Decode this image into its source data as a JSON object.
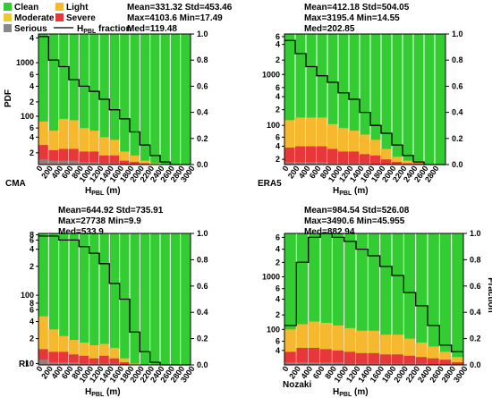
{
  "legend": {
    "items": [
      {
        "label": "Clean",
        "color": "#33cc33"
      },
      {
        "label": "Light",
        "color": "#f5b82e"
      },
      {
        "label": "Moderate",
        "color": "#f0c92c"
      },
      {
        "label": "Severe",
        "color": "#e8373a"
      },
      {
        "label": "Serious",
        "color": "#888888"
      }
    ],
    "line_label": "H",
    "line_sub": "PBL",
    "line_suffix": " fraction"
  },
  "chart_data": [
    {
      "type": "bar",
      "name": "CMA",
      "stats": [
        "Mean=331.32 Std=453.46",
        "Max=4103.6 Min=17.49",
        "Med=119.48"
      ],
      "xlabel": "H",
      "xlabel_sub": "PBL",
      "xlabel_unit": " (m)",
      "ylabel": "PDF",
      "ylabel_right": "",
      "x_ticks": [
        "0",
        "200",
        "400",
        "600",
        "800",
        "1000",
        "1200",
        "1400",
        "1600",
        "1800",
        "2000",
        "2200",
        "2400",
        "2600",
        "2800",
        "3000"
      ],
      "left_ticks": [
        {
          "label": "4",
          "f": 0.03
        },
        {
          "label": "1000",
          "f": 0.22
        },
        {
          "label": "6",
          "f": 0.31
        },
        {
          "label": "4",
          "f": 0.4
        },
        {
          "label": "2",
          "f": 0.52
        },
        {
          "label": "100",
          "f": 0.63
        },
        {
          "label": "6",
          "f": 0.72
        },
        {
          "label": "4",
          "f": 0.79
        },
        {
          "label": "2",
          "f": 0.91
        }
      ],
      "right_ticks": [
        "0.0",
        "0.2",
        "0.4",
        "0.6",
        "0.8",
        "1.0"
      ],
      "severe": [
        0.15,
        0.11,
        0.12,
        0.12,
        0.1,
        0.1,
        0.07,
        0.07,
        0.03,
        0.02,
        0.01,
        0,
        0,
        0,
        0
      ],
      "light": [
        0.18,
        0.15,
        0.23,
        0.22,
        0.18,
        0.16,
        0.14,
        0.12,
        0.07,
        0.05,
        0.02,
        0.01,
        0,
        0,
        0
      ],
      "serious": [
        0.04,
        0.03,
        0.03,
        0.03,
        0.02,
        0.02,
        0.01,
        0.01,
        0,
        0,
        0,
        0,
        0,
        0,
        0
      ],
      "cdf": [
        0.98,
        0.8,
        0.75,
        0.65,
        0.6,
        0.56,
        0.5,
        0.42,
        0.35,
        0.25,
        0.15,
        0.07,
        0.02,
        0,
        0
      ]
    },
    {
      "type": "bar",
      "name": "ERA5",
      "stats": [
        "Mean=412.18 Std=504.05",
        "Max=3195.4 Min=14.55",
        "Med=202.85"
      ],
      "xlabel": "H",
      "xlabel_sub": "PBL",
      "xlabel_unit": " (m)",
      "ylabel": "",
      "ylabel_right": "",
      "x_ticks": [
        "0",
        "200",
        "400",
        "600",
        "800",
        "1000",
        "1200",
        "1400",
        "1600",
        "1800",
        "2000",
        "2200",
        "2400",
        "2600",
        "2800"
      ],
      "left_ticks": [
        {
          "label": "6",
          "f": 0.02
        },
        {
          "label": "4",
          "f": 0.08
        },
        {
          "label": "2",
          "f": 0.2
        },
        {
          "label": "1000",
          "f": 0.31
        },
        {
          "label": "6",
          "f": 0.41
        },
        {
          "label": "4",
          "f": 0.48
        },
        {
          "label": "2",
          "f": 0.58
        },
        {
          "label": "100",
          "f": 0.7
        },
        {
          "label": "6",
          "f": 0.79
        },
        {
          "label": "4",
          "f": 0.86
        },
        {
          "label": "2",
          "f": 0.96
        }
      ],
      "right_ticks": [
        "0.0",
        "0.2",
        "0.4",
        "0.6",
        "0.8",
        "1.0"
      ],
      "severe": [
        0.13,
        0.14,
        0.14,
        0.14,
        0.12,
        0.1,
        0.1,
        0.08,
        0.07,
        0.04,
        0.02,
        0.01,
        0.01,
        0,
        0
      ],
      "light": [
        0.21,
        0.22,
        0.22,
        0.22,
        0.19,
        0.18,
        0.16,
        0.15,
        0.12,
        0.08,
        0.04,
        0.02,
        0.01,
        0,
        0
      ],
      "serious": [
        0.02,
        0.02,
        0.02,
        0.02,
        0.01,
        0.01,
        0.01,
        0.01,
        0,
        0,
        0,
        0,
        0,
        0,
        0
      ],
      "cdf": [
        0.95,
        0.85,
        0.75,
        0.68,
        0.63,
        0.55,
        0.5,
        0.4,
        0.3,
        0.24,
        0.15,
        0.07,
        0.02,
        0,
        0
      ]
    },
    {
      "type": "bar",
      "name": "Ri",
      "stats": [
        "Mean=644.92 Std=735.91",
        "Max=27738 Min=9.9",
        "Med=533.9"
      ],
      "xlabel": "H",
      "xlabel_sub": "PBL",
      "xlabel_unit": " (m)",
      "ylabel": "",
      "ylabel_right": "",
      "x_ticks": [
        "0",
        "200",
        "400",
        "600",
        "800",
        "1000",
        "1200",
        "1400",
        "1600",
        "1800",
        "2000",
        "2200",
        "2400",
        "2600",
        "2800",
        "3000"
      ],
      "left_ticks": [
        {
          "label": "8",
          "f": 0.01
        },
        {
          "label": "6",
          "f": 0.05
        },
        {
          "label": "4",
          "f": 0.12
        },
        {
          "label": "2",
          "f": 0.25
        },
        {
          "label": "100",
          "f": 0.47
        },
        {
          "label": "8",
          "f": 0.53
        },
        {
          "label": "6",
          "f": 0.58
        },
        {
          "label": "4",
          "f": 0.67
        },
        {
          "label": "2",
          "f": 0.8
        },
        {
          "label": "10",
          "f": 0.99
        }
      ],
      "right_ticks": [
        "0.0",
        "0.2",
        "0.4",
        "0.6",
        "0.8",
        "1.0"
      ],
      "severe": [
        0.12,
        0.1,
        0.1,
        0.08,
        0.07,
        0.05,
        0.07,
        0.05,
        0.02,
        0,
        0,
        0,
        0,
        0,
        0
      ],
      "light": [
        0.25,
        0.17,
        0.12,
        0.11,
        0.1,
        0.1,
        0.09,
        0.08,
        0.03,
        0.01,
        0,
        0,
        0,
        0,
        0
      ],
      "serious": [
        0.04,
        0.02,
        0.02,
        0.02,
        0.01,
        0.01,
        0.01,
        0.01,
        0,
        0,
        0,
        0,
        0,
        0,
        0
      ],
      "cdf": [
        0.98,
        0.98,
        0.95,
        0.95,
        0.9,
        0.85,
        0.77,
        0.62,
        0.5,
        0.25,
        0.1,
        0.02,
        0,
        0,
        0
      ]
    },
    {
      "type": "bar",
      "name": "Nozaki",
      "stats": [
        "Mean=984.54 Std=526.08",
        "Max=3490.6 Min=45.955",
        "Med=882.94"
      ],
      "xlabel": "H",
      "xlabel_sub": "PBL",
      "xlabel_unit": " (m)",
      "ylabel": "",
      "ylabel_right": "Fraction",
      "x_ticks": [
        "0",
        "200",
        "400",
        "600",
        "800",
        "1000",
        "1200",
        "1400",
        "1600",
        "1800",
        "2000",
        "2200",
        "2400",
        "2600",
        "2800",
        "3000"
      ],
      "left_ticks": [
        {
          "label": "6",
          "f": 0.03
        },
        {
          "label": "4",
          "f": 0.12
        },
        {
          "label": "2",
          "f": 0.22
        },
        {
          "label": "1000",
          "f": 0.33
        },
        {
          "label": "6",
          "f": 0.42
        },
        {
          "label": "4",
          "f": 0.5
        },
        {
          "label": "2",
          "f": 0.62
        },
        {
          "label": "100",
          "f": 0.73
        },
        {
          "label": "6",
          "f": 0.82
        },
        {
          "label": "4",
          "f": 0.89
        }
      ],
      "right_ticks": [
        "0.0",
        "0.2",
        "0.4",
        "0.6",
        "0.8",
        "1.0"
      ],
      "severe": [
        0.1,
        0.13,
        0.13,
        0.12,
        0.11,
        0.1,
        0.09,
        0.09,
        0.08,
        0.08,
        0.07,
        0.06,
        0.05,
        0.04,
        0.02
      ],
      "light": [
        0.17,
        0.18,
        0.2,
        0.2,
        0.19,
        0.18,
        0.17,
        0.17,
        0.15,
        0.15,
        0.13,
        0.11,
        0.09,
        0.06,
        0.04
      ],
      "serious": [
        0.02,
        0.02,
        0.02,
        0.02,
        0.02,
        0.01,
        0.01,
        0.01,
        0.01,
        0.01,
        0.01,
        0.01,
        0,
        0,
        0
      ],
      "cdf": [
        0.3,
        0.78,
        0.97,
        1.0,
        0.97,
        0.94,
        0.88,
        0.83,
        0.75,
        0.68,
        0.55,
        0.45,
        0.3,
        0.15,
        0.1
      ]
    }
  ]
}
